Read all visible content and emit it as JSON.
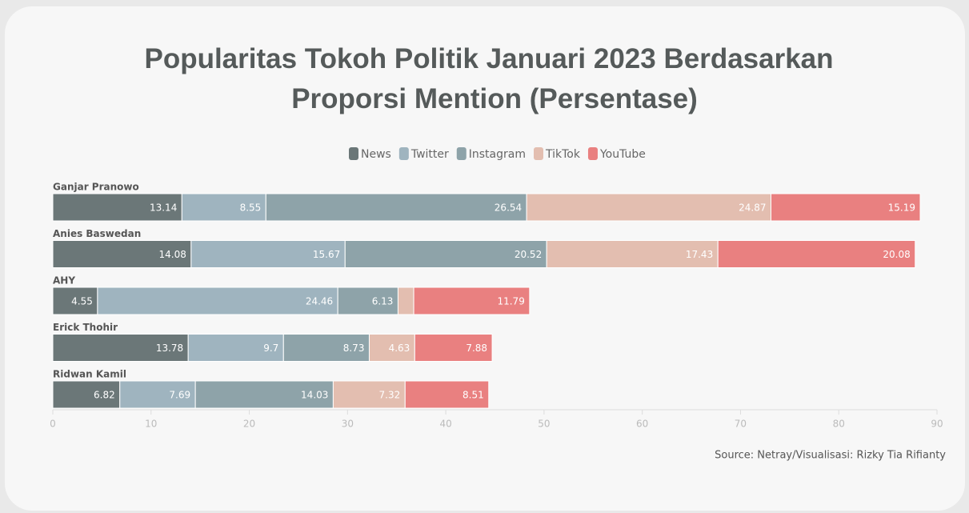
{
  "chart_data": {
    "type": "stacked_bar_horizontal",
    "title": "Popularitas Tokoh Politik Januari 2023 Berdasarkan Proporsi Mention (Persentase)",
    "source": "Source: Netray/Visualisasi: Rizky Tia Rifianty",
    "categories": [
      "Ganjar Pranowo",
      "Anies Baswedan",
      "AHY",
      "Erick Thohir",
      "Ridwan Kamil"
    ],
    "series": [
      {
        "name": "News",
        "color": "#6b7778",
        "values": [
          13.14,
          14.08,
          4.55,
          13.78,
          6.82
        ]
      },
      {
        "name": "Twitter",
        "color": "#9fb4bf",
        "values": [
          8.55,
          15.67,
          24.46,
          9.7,
          7.69
        ]
      },
      {
        "name": "Instagram",
        "color": "#8ea3a9",
        "values": [
          26.54,
          20.52,
          6.13,
          8.73,
          14.03
        ]
      },
      {
        "name": "TikTok",
        "color": "#e3beb0",
        "values": [
          24.87,
          17.43,
          1.6,
          4.63,
          7.32
        ]
      },
      {
        "name": "YouTube",
        "color": "#e98080",
        "values": [
          15.19,
          20.08,
          11.79,
          7.88,
          8.51
        ]
      }
    ],
    "xlim": [
      0,
      90
    ],
    "xticks": [
      0,
      10,
      20,
      30,
      40,
      50,
      60,
      70,
      80,
      90
    ],
    "legend": "top"
  }
}
